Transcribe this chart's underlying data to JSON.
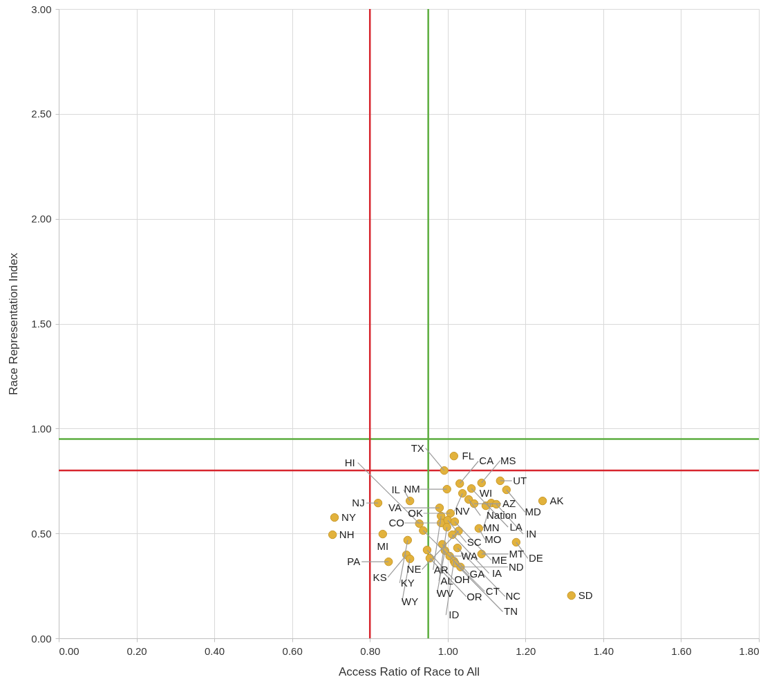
{
  "chart_data": {
    "type": "scatter",
    "xlabel": "Access Ratio of Race to All",
    "ylabel": "Race Representation Index",
    "x": [
      1.016,
      0.991,
      1.031,
      0.998,
      1.054,
      1.068,
      1.038,
      1.087,
      1.135,
      1.151,
      1.061,
      1.098,
      1.112,
      1.125,
      0.979,
      1.007,
      0.983,
      0.983,
      1.0,
      1.018,
      0.998,
      1.028,
      1.012,
      1.08,
      0.986,
      0.903,
      0.821,
      0.709,
      0.704,
      0.833,
      0.927,
      0.937,
      0.897,
      0.947,
      0.894,
      0.848,
      0.903,
      0.954,
      0.993,
      1.025,
      1.087,
      1.176,
      1.005,
      1.016,
      1.033,
      1.019,
      1.318,
      1.244
    ],
    "series": [
      {
        "color": "#e2b23c",
        "values": [
          0.869,
          0.8,
          0.738,
          0.711,
          0.662,
          0.642,
          0.691,
          0.741,
          0.751,
          0.708,
          0.714,
          0.632,
          0.645,
          0.639,
          0.622,
          0.596,
          0.583,
          0.55,
          0.563,
          0.556,
          0.53,
          0.512,
          0.494,
          0.524,
          0.448,
          0.655,
          0.645,
          0.576,
          0.494,
          0.497,
          0.547,
          0.514,
          0.468,
          0.421,
          0.398,
          0.365,
          0.379,
          0.382,
          0.418,
          0.431,
          0.402,
          0.458,
          0.392,
          0.368,
          0.34,
          0.358,
          0.204,
          0.655
        ]
      }
    ],
    "annotations": [
      {
        "text": "FL",
        "x": 1.016,
        "y": 0.869
      },
      {
        "text": "TX",
        "x": 0.991,
        "y": 0.8
      },
      {
        "text": "CA",
        "x": 1.031,
        "y": 0.738
      },
      {
        "text": "NM",
        "x": 0.998,
        "y": 0.711
      },
      {
        "text": "Nation",
        "x": 1.054,
        "y": 0.662
      },
      {
        "text": "AZ",
        "x": 1.068,
        "y": 0.642
      },
      {
        "text": "NV",
        "x": 1.038,
        "y": 0.691
      },
      {
        "text": "MS",
        "x": 1.087,
        "y": 0.741
      },
      {
        "text": "UT",
        "x": 1.135,
        "y": 0.751
      },
      {
        "text": "MD",
        "x": 1.151,
        "y": 0.708
      },
      {
        "text": "LA",
        "x": 1.061,
        "y": 0.714
      },
      {
        "text": "WI",
        "x": 1.098,
        "y": 0.632
      },
      {
        "text": "MN",
        "x": 1.112,
        "y": 0.645
      },
      {
        "text": "IN",
        "x": 1.125,
        "y": 0.639
      },
      {
        "text": "VA",
        "x": 0.979,
        "y": 0.622
      },
      {
        "text": "OK",
        "x": 1.007,
        "y": 0.596
      },
      {
        "text": "AR",
        "x": 0.983,
        "y": 0.583
      },
      {
        "text": "CO",
        "x": 0.983,
        "y": 0.55
      },
      {
        "text": "SC",
        "x": 1.0,
        "y": 0.563
      },
      {
        "text": "ME",
        "x": 1.018,
        "y": 0.556
      },
      {
        "text": "AL",
        "x": 0.998,
        "y": 0.53
      },
      {
        "text": "NE",
        "x": 1.028,
        "y": 0.512
      },
      {
        "text": "IA",
        "x": 1.012,
        "y": 0.494
      },
      {
        "text": "MO",
        "x": 1.08,
        "y": 0.524
      },
      {
        "text": "GA",
        "x": 0.986,
        "y": 0.448
      },
      {
        "text": "IL",
        "x": 0.903,
        "y": 0.655
      },
      {
        "text": "NJ",
        "x": 0.821,
        "y": 0.645
      },
      {
        "text": "NY",
        "x": 0.709,
        "y": 0.576
      },
      {
        "text": "NH",
        "x": 0.704,
        "y": 0.494
      },
      {
        "text": "MI",
        "x": 0.833,
        "y": 0.497
      },
      {
        "text": "HI",
        "x": 0.927,
        "y": 0.547
      },
      {
        "text": "CT",
        "x": 0.937,
        "y": 0.514
      },
      {
        "text": "KY",
        "x": 0.897,
        "y": 0.468
      },
      {
        "text": "OH",
        "x": 0.947,
        "y": 0.421
      },
      {
        "text": "KS",
        "x": 0.894,
        "y": 0.398
      },
      {
        "text": "PA",
        "x": 0.848,
        "y": 0.365
      },
      {
        "text": "WY",
        "x": 0.903,
        "y": 0.379
      },
      {
        "text": "OR",
        "x": 0.954,
        "y": 0.382
      },
      {
        "text": "WV",
        "x": 0.993,
        "y": 0.418
      },
      {
        "text": "NC",
        "x": 1.025,
        "y": 0.431
      },
      {
        "text": "MT",
        "x": 1.087,
        "y": 0.402
      },
      {
        "text": "DE",
        "x": 1.176,
        "y": 0.458
      },
      {
        "text": "WA",
        "x": 1.005,
        "y": 0.392
      },
      {
        "text": "ID",
        "x": 1.016,
        "y": 0.368
      },
      {
        "text": "ND",
        "x": 1.033,
        "y": 0.34
      },
      {
        "text": "TN",
        "x": 1.019,
        "y": 0.358
      },
      {
        "text": "SD",
        "x": 1.318,
        "y": 0.204
      },
      {
        "text": "AK",
        "x": 1.244,
        "y": 0.655
      }
    ],
    "xlim": [
      0,
      1.8
    ],
    "xticks": [
      {
        "value": 0,
        "label": "0.00"
      },
      {
        "value": 0.2,
        "label": "0.20"
      },
      {
        "value": 0.4,
        "label": "0.40"
      },
      {
        "value": 0.6,
        "label": "0.60"
      },
      {
        "value": 0.8,
        "label": "0.80"
      },
      {
        "value": 1.0,
        "label": "1.00"
      },
      {
        "value": 1.2,
        "label": "1.20"
      },
      {
        "value": 1.4,
        "label": "1.40"
      },
      {
        "value": 1.6,
        "label": "1.60"
      },
      {
        "value": 1.8,
        "label": "1.80"
      }
    ],
    "ylim": [
      0,
      3
    ],
    "yticks": [
      {
        "value": 0,
        "label": "0.00"
      },
      {
        "value": 0.5,
        "label": "0.50"
      },
      {
        "value": 1.0,
        "label": "1.00"
      },
      {
        "value": 1.5,
        "label": "1.50"
      },
      {
        "value": 2.0,
        "label": "2.00"
      },
      {
        "value": 2.5,
        "label": "2.50"
      },
      {
        "value": 3.0,
        "label": "3.00"
      }
    ],
    "ref_lines": [
      {
        "axis": "x",
        "value": 0.8,
        "color": "#d7262e"
      },
      {
        "axis": "x",
        "value": 0.95,
        "color": "#5bad3e"
      },
      {
        "axis": "y",
        "value": 0.8,
        "color": "#d7262e"
      },
      {
        "axis": "y",
        "value": 0.95,
        "color": "#5bad3e"
      }
    ],
    "grid": true,
    "marker": "circle"
  }
}
